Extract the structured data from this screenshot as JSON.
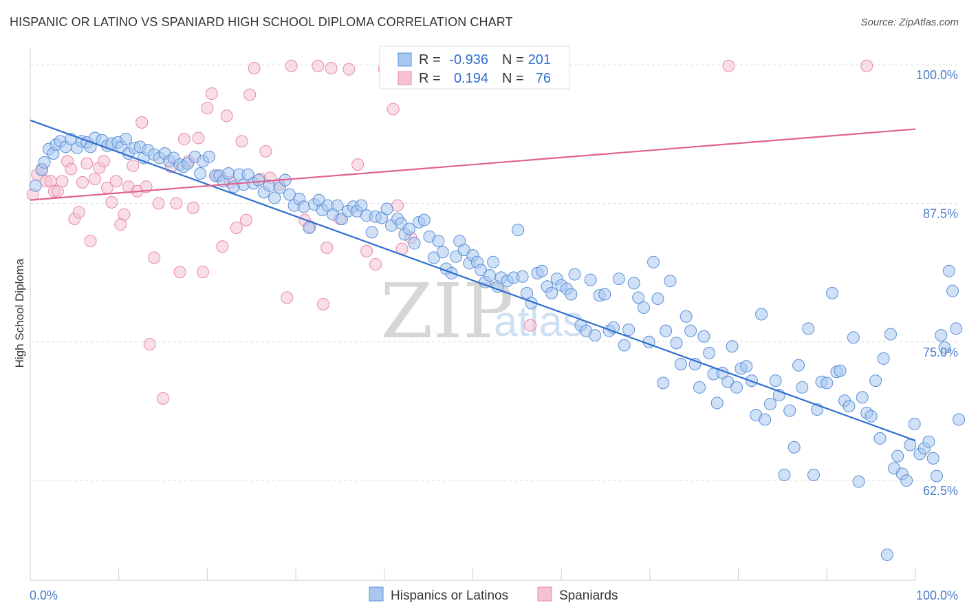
{
  "header": {
    "title": "HISPANIC OR LATINO VS SPANIARD HIGH SCHOOL DIPLOMA CORRELATION CHART",
    "source": "Source: ZipAtlas.com"
  },
  "watermark": {
    "zip": "ZIP",
    "atlas": "atlas"
  },
  "colors": {
    "blue_fill": "#a9c8f0",
    "blue_stroke": "#5b8fd6",
    "blue_line": "#2e6fcf",
    "pink_fill": "#f6c2d2",
    "pink_stroke": "#e58aa7",
    "pink_line": "#e0628d",
    "grid": "#dddddd",
    "axis_text": "#4a7cc9"
  },
  "legend": {
    "rows": [
      {
        "r_label": "R =",
        "r_value": "-0.936",
        "n_label": "N =",
        "n_value": "201"
      },
      {
        "r_label": "R =",
        "r_value": "0.194",
        "n_label": "N =",
        "n_value": "76"
      }
    ]
  },
  "bottom_legend": [
    "Hispanics or Latinos",
    "Spaniards"
  ],
  "chart_data": {
    "type": "scatter",
    "title": "HISPANIC OR LATINO VS SPANIARD HIGH SCHOOL DIPLOMA CORRELATION CHART",
    "xlabel": "",
    "ylabel": "High School Diploma",
    "xlim": [
      0,
      100
    ],
    "ylim": [
      53.5,
      101.5
    ],
    "x_tick_labels": [
      "0.0%",
      "100.0%"
    ],
    "y_ticks": [
      62.5,
      75.0,
      87.5,
      100.0
    ],
    "y_tick_labels": [
      "62.5%",
      "75.0%",
      "87.5%",
      "100.0%"
    ],
    "grid": true,
    "legend_position": "top-center",
    "series": [
      {
        "name": "Hispanics or Latinos",
        "color": "#5b8fd6",
        "r": -0.936,
        "n": 201,
        "trend": [
          [
            0,
            95.0
          ],
          [
            100,
            66.1
          ]
        ],
        "points": [
          [
            0.6,
            89.1
          ],
          [
            1.3,
            90.5
          ],
          [
            1.6,
            91.2
          ],
          [
            2.1,
            92.4
          ],
          [
            2.6,
            92.0
          ],
          [
            2.9,
            92.8
          ],
          [
            3.4,
            93.1
          ],
          [
            4.0,
            92.6
          ],
          [
            4.6,
            93.3
          ],
          [
            5.3,
            92.5
          ],
          [
            5.8,
            93.1
          ],
          [
            6.4,
            93.0
          ],
          [
            6.8,
            92.6
          ],
          [
            7.3,
            93.4
          ],
          [
            8.1,
            93.2
          ],
          [
            8.7,
            92.7
          ],
          [
            9.2,
            92.9
          ],
          [
            9.9,
            93.0
          ],
          [
            10.3,
            92.6
          ],
          [
            10.8,
            93.3
          ],
          [
            11.1,
            92.0
          ],
          [
            11.8,
            92.5
          ],
          [
            12.4,
            92.6
          ],
          [
            12.8,
            91.6
          ],
          [
            13.3,
            92.3
          ],
          [
            14.0,
            91.9
          ],
          [
            14.6,
            91.6
          ],
          [
            15.2,
            92.0
          ],
          [
            15.7,
            91.3
          ],
          [
            16.2,
            91.6
          ],
          [
            16.9,
            91.0
          ],
          [
            17.3,
            90.8
          ],
          [
            17.8,
            91.1
          ],
          [
            18.6,
            91.7
          ],
          [
            19.2,
            90.2
          ],
          [
            19.5,
            91.3
          ],
          [
            20.2,
            91.7
          ],
          [
            20.9,
            90.0
          ],
          [
            21.4,
            90.0
          ],
          [
            21.8,
            89.5
          ],
          [
            22.4,
            90.2
          ],
          [
            23.0,
            89.0
          ],
          [
            23.6,
            90.1
          ],
          [
            24.1,
            89.2
          ],
          [
            24.6,
            90.1
          ],
          [
            25.2,
            89.3
          ],
          [
            25.8,
            89.6
          ],
          [
            26.4,
            88.5
          ],
          [
            27.0,
            89.1
          ],
          [
            27.6,
            88.0
          ],
          [
            28.2,
            88.9
          ],
          [
            28.8,
            89.6
          ],
          [
            29.3,
            88.3
          ],
          [
            29.8,
            87.3
          ],
          [
            30.4,
            87.9
          ],
          [
            30.9,
            87.2
          ],
          [
            31.5,
            85.3
          ],
          [
            32.1,
            87.4
          ],
          [
            32.6,
            87.8
          ],
          [
            33.0,
            86.9
          ],
          [
            33.6,
            87.3
          ],
          [
            34.2,
            86.5
          ],
          [
            34.7,
            87.3
          ],
          [
            35.2,
            86.1
          ],
          [
            35.9,
            86.8
          ],
          [
            36.5,
            87.2
          ],
          [
            36.9,
            86.8
          ],
          [
            37.4,
            87.3
          ],
          [
            38.0,
            86.4
          ],
          [
            38.6,
            84.9
          ],
          [
            39.0,
            86.3
          ],
          [
            39.7,
            86.2
          ],
          [
            40.3,
            87.0
          ],
          [
            40.8,
            85.5
          ],
          [
            41.5,
            86.1
          ],
          [
            41.9,
            85.7
          ],
          [
            42.3,
            84.7
          ],
          [
            42.8,
            85.2
          ],
          [
            43.4,
            83.9
          ],
          [
            43.9,
            85.8
          ],
          [
            44.5,
            86.0
          ],
          [
            45.1,
            84.5
          ],
          [
            45.6,
            82.6
          ],
          [
            46.1,
            84.1
          ],
          [
            46.6,
            83.1
          ],
          [
            47.0,
            81.6
          ],
          [
            47.6,
            81.2
          ],
          [
            48.1,
            82.7
          ],
          [
            48.5,
            84.1
          ],
          [
            49.0,
            83.3
          ],
          [
            49.6,
            82.1
          ],
          [
            50.0,
            82.8
          ],
          [
            50.5,
            82.2
          ],
          [
            50.9,
            81.5
          ],
          [
            51.4,
            80.4
          ],
          [
            51.9,
            81.0
          ],
          [
            52.3,
            82.2
          ],
          [
            52.8,
            80.0
          ],
          [
            53.2,
            80.8
          ],
          [
            53.9,
            80.5
          ],
          [
            54.6,
            80.8
          ],
          [
            55.1,
            85.1
          ],
          [
            55.6,
            80.9
          ],
          [
            56.1,
            79.4
          ],
          [
            56.6,
            78.5
          ],
          [
            57.3,
            81.2
          ],
          [
            57.8,
            81.4
          ],
          [
            58.4,
            80.0
          ],
          [
            58.9,
            79.4
          ],
          [
            59.5,
            80.7
          ],
          [
            60.0,
            80.1
          ],
          [
            60.6,
            79.8
          ],
          [
            61.1,
            79.3
          ],
          [
            61.5,
            81.1
          ],
          [
            62.2,
            76.5
          ],
          [
            62.8,
            76.0
          ],
          [
            63.3,
            80.6
          ],
          [
            63.8,
            75.6
          ],
          [
            64.3,
            79.2
          ],
          [
            64.9,
            79.3
          ],
          [
            65.4,
            76.0
          ],
          [
            65.9,
            76.3
          ],
          [
            66.5,
            80.7
          ],
          [
            67.1,
            74.7
          ],
          [
            67.6,
            76.1
          ],
          [
            68.2,
            80.3
          ],
          [
            68.7,
            79.0
          ],
          [
            69.3,
            78.1
          ],
          [
            69.9,
            75.0
          ],
          [
            70.4,
            82.2
          ],
          [
            70.9,
            78.9
          ],
          [
            71.5,
            71.3
          ],
          [
            71.8,
            76.0
          ],
          [
            72.3,
            80.5
          ],
          [
            73.0,
            74.9
          ],
          [
            73.5,
            73.0
          ],
          [
            74.1,
            77.3
          ],
          [
            74.6,
            76.0
          ],
          [
            75.1,
            73.0
          ],
          [
            75.6,
            70.9
          ],
          [
            76.1,
            75.5
          ],
          [
            76.7,
            74.0
          ],
          [
            77.2,
            72.1
          ],
          [
            77.6,
            69.5
          ],
          [
            78.2,
            72.2
          ],
          [
            78.8,
            71.4
          ],
          [
            79.3,
            74.6
          ],
          [
            79.8,
            70.9
          ],
          [
            80.3,
            72.6
          ],
          [
            80.9,
            72.8
          ],
          [
            81.5,
            71.5
          ],
          [
            82.0,
            68.4
          ],
          [
            82.6,
            77.5
          ],
          [
            83.0,
            68.0
          ],
          [
            83.6,
            69.4
          ],
          [
            84.2,
            71.5
          ],
          [
            84.6,
            70.2
          ],
          [
            85.2,
            63.0
          ],
          [
            85.8,
            68.8
          ],
          [
            86.3,
            65.5
          ],
          [
            86.8,
            72.9
          ],
          [
            87.2,
            70.9
          ],
          [
            87.9,
            76.2
          ],
          [
            88.5,
            63.0
          ],
          [
            88.9,
            68.9
          ],
          [
            89.4,
            71.4
          ],
          [
            90.0,
            71.3
          ],
          [
            90.6,
            79.4
          ],
          [
            91.1,
            72.3
          ],
          [
            91.5,
            72.4
          ],
          [
            92.0,
            69.7
          ],
          [
            92.5,
            69.2
          ],
          [
            93.0,
            75.4
          ],
          [
            93.6,
            62.4
          ],
          [
            94.0,
            70.0
          ],
          [
            94.5,
            68.6
          ],
          [
            95.0,
            68.3
          ],
          [
            95.5,
            71.5
          ],
          [
            96.0,
            66.3
          ],
          [
            96.4,
            73.5
          ],
          [
            96.8,
            55.8
          ],
          [
            97.2,
            75.7
          ],
          [
            97.6,
            63.6
          ],
          [
            98.0,
            64.7
          ],
          [
            98.5,
            63.1
          ],
          [
            99.0,
            62.5
          ],
          [
            99.4,
            65.7
          ],
          [
            99.9,
            67.6
          ],
          [
            100.5,
            64.9
          ],
          [
            101.0,
            65.4
          ],
          [
            101.5,
            66.0
          ],
          [
            102.0,
            64.5
          ],
          [
            102.4,
            62.9
          ],
          [
            102.9,
            75.6
          ],
          [
            103.3,
            74.5
          ],
          [
            103.8,
            81.4
          ],
          [
            104.2,
            79.6
          ],
          [
            104.6,
            76.2
          ],
          [
            104.9,
            68.0
          ]
        ]
      },
      {
        "name": "Spaniards",
        "color": "#e58aa7",
        "r": 0.194,
        "n": 76,
        "trend": [
          [
            0,
            87.8
          ],
          [
            100,
            94.2
          ]
        ],
        "points": [
          [
            0.3,
            88.3
          ],
          [
            0.8,
            90.1
          ],
          [
            1.3,
            90.6
          ],
          [
            1.8,
            89.5
          ],
          [
            2.3,
            89.5
          ],
          [
            2.7,
            88.6
          ],
          [
            3.1,
            88.6
          ],
          [
            3.6,
            89.5
          ],
          [
            4.2,
            91.3
          ],
          [
            4.6,
            90.6
          ],
          [
            5.0,
            86.1
          ],
          [
            5.5,
            86.7
          ],
          [
            5.9,
            89.4
          ],
          [
            6.4,
            91.1
          ],
          [
            6.8,
            84.1
          ],
          [
            7.3,
            89.7
          ],
          [
            7.8,
            90.7
          ],
          [
            8.3,
            91.3
          ],
          [
            8.7,
            88.9
          ],
          [
            9.2,
            87.6
          ],
          [
            9.7,
            89.5
          ],
          [
            10.2,
            85.6
          ],
          [
            10.6,
            86.5
          ],
          [
            11.1,
            89.0
          ],
          [
            11.6,
            90.9
          ],
          [
            12.1,
            88.6
          ],
          [
            12.6,
            94.8
          ],
          [
            13.1,
            89.0
          ],
          [
            13.5,
            74.8
          ],
          [
            14.0,
            82.6
          ],
          [
            14.5,
            87.5
          ],
          [
            15.0,
            69.9
          ],
          [
            15.9,
            90.8
          ],
          [
            16.5,
            87.5
          ],
          [
            16.9,
            81.3
          ],
          [
            17.4,
            93.3
          ],
          [
            17.9,
            91.3
          ],
          [
            18.4,
            87.1
          ],
          [
            19.0,
            93.4
          ],
          [
            19.5,
            81.3
          ],
          [
            20.0,
            96.1
          ],
          [
            20.5,
            97.4
          ],
          [
            21.1,
            90.0
          ],
          [
            21.7,
            83.6
          ],
          [
            22.2,
            95.4
          ],
          [
            22.6,
            89.4
          ],
          [
            23.3,
            85.3
          ],
          [
            23.9,
            93.1
          ],
          [
            24.4,
            86.0
          ],
          [
            24.8,
            97.3
          ],
          [
            25.3,
            99.7
          ],
          [
            26.0,
            89.7
          ],
          [
            26.6,
            92.2
          ],
          [
            27.1,
            89.8
          ],
          [
            28.1,
            89.2
          ],
          [
            29.0,
            79.0
          ],
          [
            29.5,
            99.9
          ],
          [
            31.0,
            86.0
          ],
          [
            31.6,
            85.4
          ],
          [
            32.5,
            99.9
          ],
          [
            33.1,
            78.4
          ],
          [
            33.5,
            83.5
          ],
          [
            34.0,
            99.7
          ],
          [
            35.0,
            86.1
          ],
          [
            36.0,
            99.6
          ],
          [
            37.0,
            91.0
          ],
          [
            38.0,
            83.2
          ],
          [
            39.0,
            82.0
          ],
          [
            40.0,
            99.6
          ],
          [
            41.0,
            96.0
          ],
          [
            41.5,
            87.3
          ],
          [
            42.0,
            83.4
          ],
          [
            43.0,
            84.4
          ],
          [
            56.5,
            76.5
          ],
          [
            78.9,
            99.9
          ],
          [
            94.5,
            99.9
          ]
        ]
      }
    ]
  }
}
